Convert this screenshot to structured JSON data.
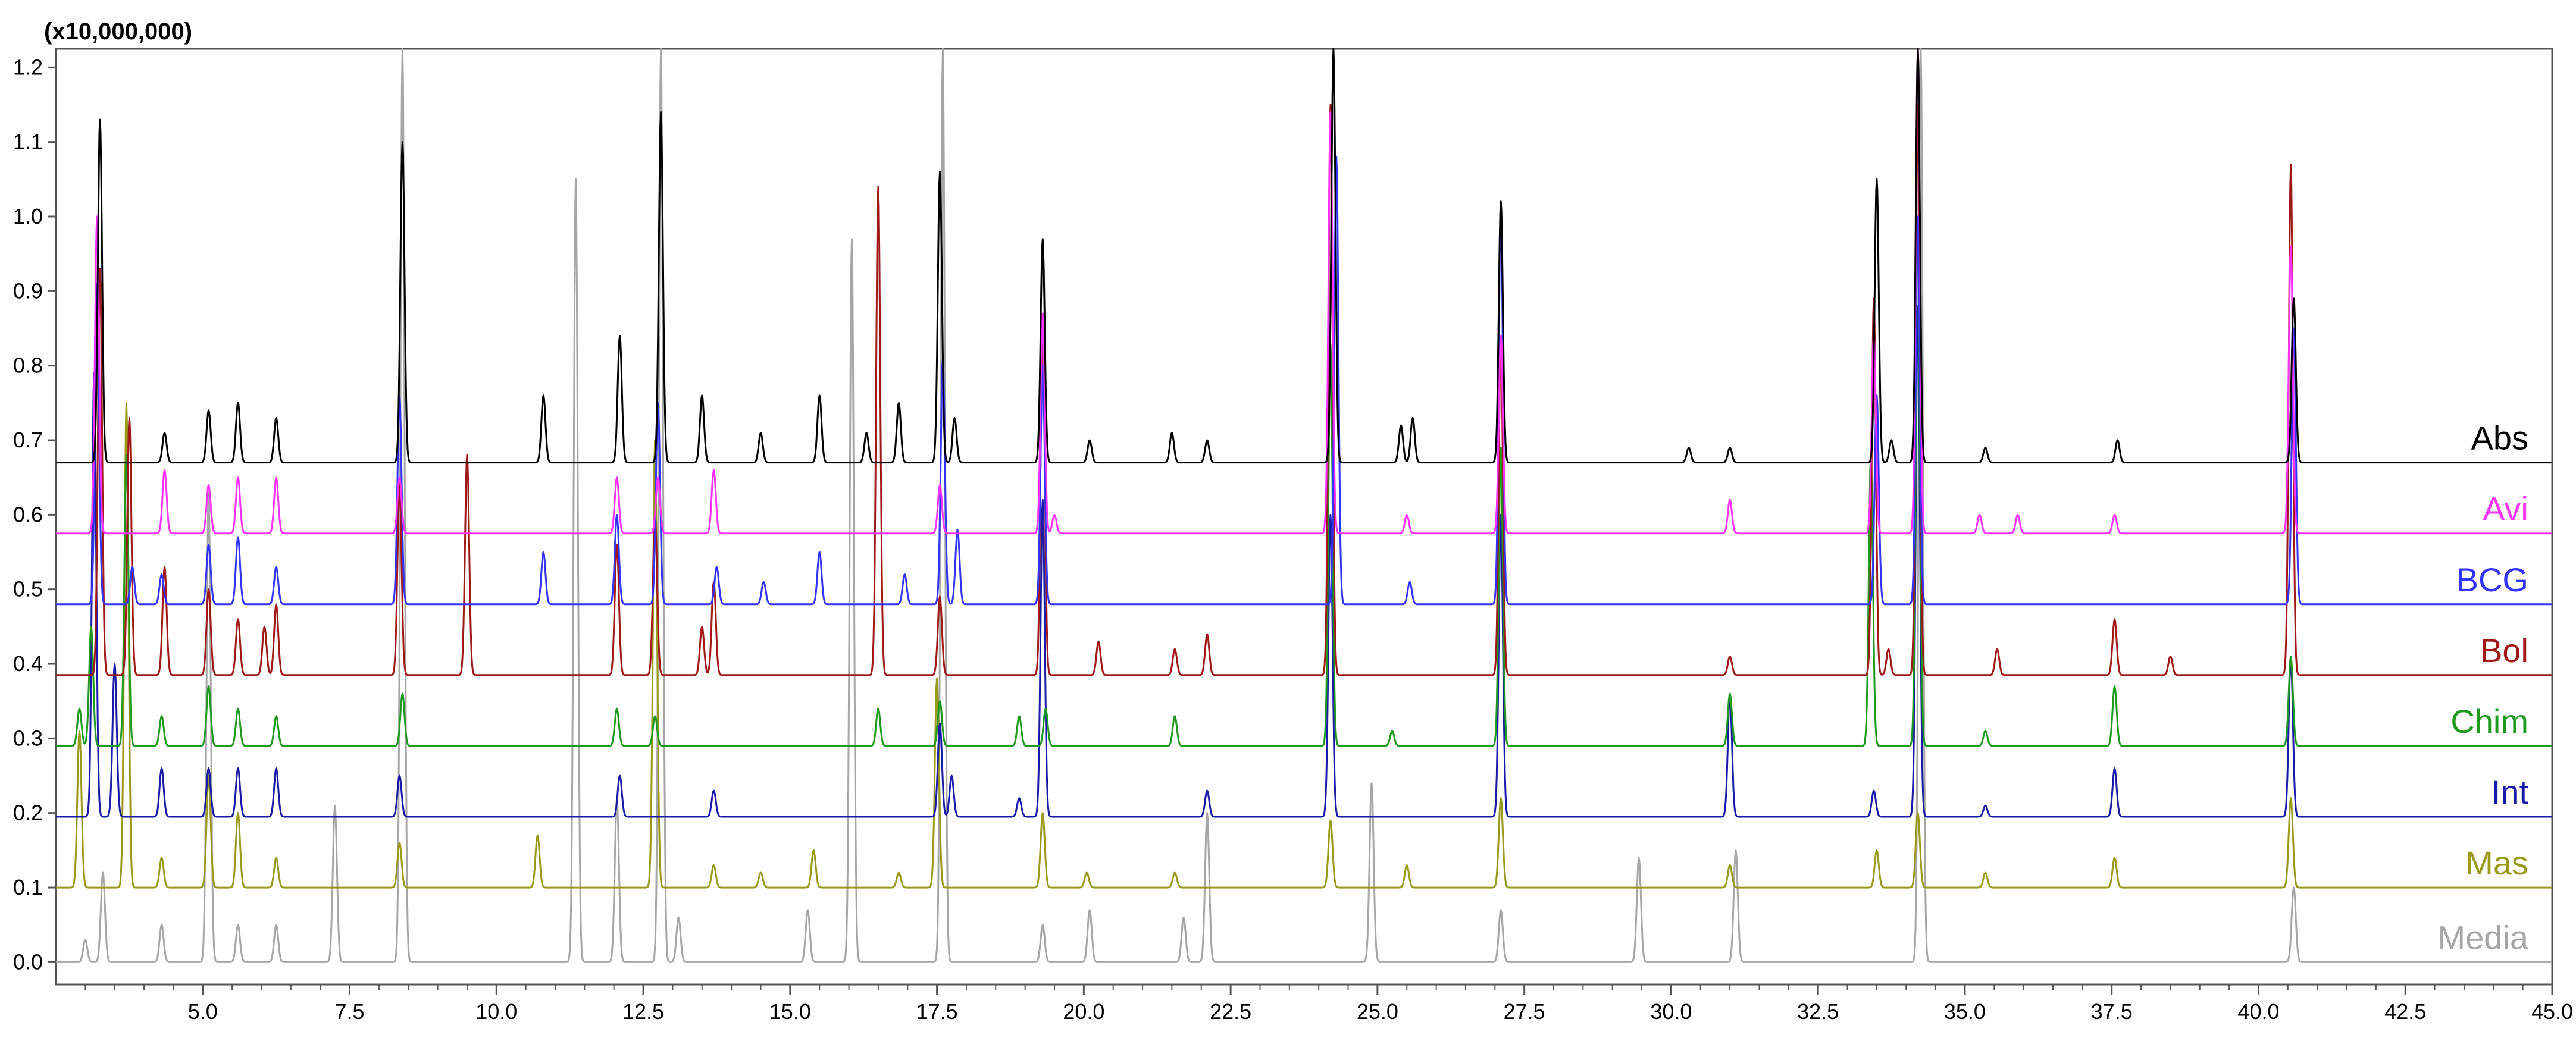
{
  "chart_data": {
    "type": "line",
    "title": "",
    "xlabel": "",
    "ylabel": "",
    "y_scale_label": "(x10,000,000)",
    "xlim": [
      2.5,
      45.0
    ],
    "ylim": [
      -0.03,
      1.225
    ],
    "x_ticks": [
      5.0,
      7.5,
      10.0,
      12.5,
      15.0,
      17.5,
      20.0,
      22.5,
      25.0,
      27.5,
      30.0,
      32.5,
      35.0,
      37.5,
      40.0,
      42.5,
      45.0
    ],
    "x_tick_labels": [
      "5.0",
      "7.5",
      "10.0",
      "12.5",
      "15.0",
      "17.5",
      "20.0",
      "22.5",
      "25.0",
      "27.5",
      "30.0",
      "32.5",
      "35.0",
      "37.5",
      "40.0",
      "42.5",
      "45.0"
    ],
    "y_ticks": [
      0.0,
      0.1,
      0.2,
      0.3,
      0.4,
      0.5,
      0.6,
      0.7,
      0.8,
      0.9,
      1.0,
      1.1,
      1.2
    ],
    "y_tick_labels": [
      "0.0",
      "0.1",
      "0.2",
      "0.3",
      "0.4",
      "0.5",
      "0.6",
      "0.7",
      "0.8",
      "0.9",
      "1.0",
      "1.1",
      "1.2"
    ],
    "grid": false,
    "legend": "series labels at right end of each trace",
    "series": [
      {
        "name": "Abs",
        "color": "#000000",
        "baseline": 0.67,
        "peaks": [
          [
            3.25,
            1.13
          ],
          [
            4.35,
            0.71
          ],
          [
            5.1,
            0.74
          ],
          [
            5.6,
            0.75
          ],
          [
            6.25,
            0.73
          ],
          [
            8.4,
            1.1
          ],
          [
            10.8,
            0.76
          ],
          [
            12.1,
            0.84
          ],
          [
            12.8,
            1.14
          ],
          [
            13.5,
            0.76
          ],
          [
            14.5,
            0.71
          ],
          [
            15.5,
            0.76
          ],
          [
            16.3,
            0.71
          ],
          [
            16.85,
            0.75
          ],
          [
            17.55,
            1.06
          ],
          [
            17.8,
            0.73
          ],
          [
            19.3,
            0.97
          ],
          [
            20.1,
            0.7
          ],
          [
            21.5,
            0.71
          ],
          [
            22.1,
            0.7
          ],
          [
            24.25,
            1.225
          ],
          [
            25.4,
            0.72
          ],
          [
            25.6,
            0.73
          ],
          [
            27.1,
            1.02
          ],
          [
            30.3,
            0.69
          ],
          [
            31.0,
            0.69
          ],
          [
            33.5,
            1.05
          ],
          [
            33.75,
            0.7
          ],
          [
            34.2,
            1.225
          ],
          [
            35.35,
            0.69
          ],
          [
            37.6,
            0.7
          ],
          [
            40.6,
            0.89
          ]
        ]
      },
      {
        "name": "Avi",
        "color": "#ff33ff",
        "baseline": 0.575,
        "peaks": [
          [
            3.2,
            1.0
          ],
          [
            4.35,
            0.66
          ],
          [
            5.1,
            0.64
          ],
          [
            5.6,
            0.65
          ],
          [
            6.25,
            0.65
          ],
          [
            8.35,
            0.65
          ],
          [
            12.05,
            0.65
          ],
          [
            12.75,
            0.65
          ],
          [
            13.7,
            0.66
          ],
          [
            17.55,
            0.64
          ],
          [
            19.3,
            0.87
          ],
          [
            19.5,
            0.6
          ],
          [
            24.2,
            1.14
          ],
          [
            25.5,
            0.6
          ],
          [
            27.1,
            0.84
          ],
          [
            31.0,
            0.62
          ],
          [
            33.45,
            0.84
          ],
          [
            34.2,
            1.225
          ],
          [
            35.25,
            0.6
          ],
          [
            35.9,
            0.6
          ],
          [
            37.55,
            0.6
          ],
          [
            40.55,
            0.96
          ]
        ]
      },
      {
        "name": "BCG",
        "color": "#3333ff",
        "baseline": 0.48,
        "peaks": [
          [
            3.2,
            0.91
          ],
          [
            3.8,
            0.53
          ],
          [
            4.3,
            0.52
          ],
          [
            5.1,
            0.56
          ],
          [
            5.6,
            0.57
          ],
          [
            6.25,
            0.53
          ],
          [
            8.35,
            0.76
          ],
          [
            10.8,
            0.55
          ],
          [
            12.05,
            0.6
          ],
          [
            12.75,
            0.75
          ],
          [
            13.75,
            0.53
          ],
          [
            14.55,
            0.51
          ],
          [
            15.5,
            0.55
          ],
          [
            16.95,
            0.52
          ],
          [
            17.6,
            0.81
          ],
          [
            17.85,
            0.58
          ],
          [
            19.3,
            0.8
          ],
          [
            24.3,
            1.08
          ],
          [
            25.55,
            0.51
          ],
          [
            27.1,
            1.02
          ],
          [
            33.5,
            0.76
          ],
          [
            34.2,
            1.0
          ],
          [
            40.6,
            0.85
          ]
        ]
      },
      {
        "name": "Bol",
        "color": "#a01818",
        "baseline": 0.385,
        "peaks": [
          [
            3.25,
            0.93
          ],
          [
            3.75,
            0.73
          ],
          [
            4.35,
            0.53
          ],
          [
            5.1,
            0.5
          ],
          [
            5.6,
            0.46
          ],
          [
            6.05,
            0.45
          ],
          [
            6.25,
            0.48
          ],
          [
            8.35,
            0.64
          ],
          [
            9.5,
            0.68
          ],
          [
            12.05,
            0.56
          ],
          [
            12.7,
            0.6
          ],
          [
            13.5,
            0.45
          ],
          [
            13.7,
            0.51
          ],
          [
            16.5,
            1.04
          ],
          [
            17.55,
            0.49
          ],
          [
            19.3,
            0.87
          ],
          [
            20.25,
            0.43
          ],
          [
            21.55,
            0.42
          ],
          [
            22.1,
            0.44
          ],
          [
            24.2,
            1.15
          ],
          [
            27.1,
            0.84
          ],
          [
            31.0,
            0.41
          ],
          [
            33.45,
            0.89
          ],
          [
            33.7,
            0.42
          ],
          [
            34.2,
            1.15
          ],
          [
            35.55,
            0.42
          ],
          [
            37.55,
            0.46
          ],
          [
            38.5,
            0.41
          ],
          [
            40.55,
            1.07
          ]
        ]
      },
      {
        "name": "Chim",
        "color": "#1f9a1f",
        "baseline": 0.29,
        "peaks": [
          [
            2.9,
            0.34
          ],
          [
            3.1,
            0.45
          ],
          [
            3.7,
            0.68
          ],
          [
            4.3,
            0.33
          ],
          [
            5.1,
            0.37
          ],
          [
            5.6,
            0.34
          ],
          [
            6.25,
            0.33
          ],
          [
            8.4,
            0.36
          ],
          [
            12.05,
            0.34
          ],
          [
            12.7,
            0.33
          ],
          [
            16.5,
            0.34
          ],
          [
            17.55,
            0.35
          ],
          [
            18.9,
            0.33
          ],
          [
            19.35,
            0.34
          ],
          [
            21.55,
            0.33
          ],
          [
            24.2,
            0.83
          ],
          [
            25.25,
            0.31
          ],
          [
            27.1,
            0.69
          ],
          [
            31.0,
            0.36
          ],
          [
            33.4,
            0.68
          ],
          [
            34.2,
            1.0
          ],
          [
            35.35,
            0.31
          ],
          [
            37.55,
            0.37
          ],
          [
            40.55,
            0.41
          ]
        ]
      },
      {
        "name": "Int",
        "color": "#1a1aa8",
        "baseline": 0.195,
        "peaks": [
          [
            3.15,
            0.79
          ],
          [
            3.5,
            0.4
          ],
          [
            4.3,
            0.26
          ],
          [
            5.1,
            0.26
          ],
          [
            5.6,
            0.26
          ],
          [
            6.25,
            0.26
          ],
          [
            8.35,
            0.25
          ],
          [
            12.1,
            0.25
          ],
          [
            13.7,
            0.23
          ],
          [
            17.55,
            0.32
          ],
          [
            17.75,
            0.25
          ],
          [
            18.9,
            0.22
          ],
          [
            19.3,
            0.62
          ],
          [
            22.1,
            0.23
          ],
          [
            24.2,
            0.6
          ],
          [
            27.1,
            0.6
          ],
          [
            31.0,
            0.36
          ],
          [
            33.45,
            0.23
          ],
          [
            34.2,
            0.88
          ],
          [
            35.35,
            0.21
          ],
          [
            37.55,
            0.26
          ],
          [
            40.55,
            0.41
          ]
        ]
      },
      {
        "name": "Mas",
        "color": "#9a9a1a",
        "baseline": 0.1,
        "peaks": [
          [
            2.9,
            0.31
          ],
          [
            3.7,
            0.75
          ],
          [
            4.3,
            0.14
          ],
          [
            5.1,
            0.25
          ],
          [
            5.6,
            0.2
          ],
          [
            6.25,
            0.14
          ],
          [
            8.35,
            0.16
          ],
          [
            10.7,
            0.17
          ],
          [
            12.7,
            0.7
          ],
          [
            13.7,
            0.13
          ],
          [
            14.5,
            0.12
          ],
          [
            15.4,
            0.15
          ],
          [
            16.85,
            0.12
          ],
          [
            17.5,
            0.38
          ],
          [
            19.3,
            0.2
          ],
          [
            20.05,
            0.12
          ],
          [
            21.55,
            0.12
          ],
          [
            24.2,
            0.19
          ],
          [
            25.5,
            0.13
          ],
          [
            27.1,
            0.22
          ],
          [
            31.0,
            0.13
          ],
          [
            33.5,
            0.15
          ],
          [
            34.2,
            0.2
          ],
          [
            35.35,
            0.12
          ],
          [
            37.55,
            0.14
          ],
          [
            40.55,
            0.22
          ]
        ]
      },
      {
        "name": "Media",
        "color": "#a6a6a6",
        "baseline": 0.0,
        "peaks": [
          [
            3.0,
            0.03
          ],
          [
            3.3,
            0.12
          ],
          [
            4.3,
            0.05
          ],
          [
            5.1,
            0.63
          ],
          [
            5.6,
            0.05
          ],
          [
            6.25,
            0.05
          ],
          [
            7.25,
            0.21
          ],
          [
            8.4,
            1.225
          ],
          [
            11.35,
            1.05
          ],
          [
            12.05,
            0.22
          ],
          [
            12.8,
            1.225
          ],
          [
            13.1,
            0.06
          ],
          [
            15.3,
            0.07
          ],
          [
            16.05,
            0.97
          ],
          [
            17.6,
            1.225
          ],
          [
            19.3,
            0.05
          ],
          [
            20.1,
            0.07
          ],
          [
            21.7,
            0.06
          ],
          [
            22.1,
            0.2
          ],
          [
            24.9,
            0.24
          ],
          [
            27.1,
            0.07
          ],
          [
            29.45,
            0.14
          ],
          [
            31.1,
            0.15
          ],
          [
            34.25,
            1.225
          ],
          [
            40.6,
            0.1
          ]
        ]
      }
    ]
  }
}
